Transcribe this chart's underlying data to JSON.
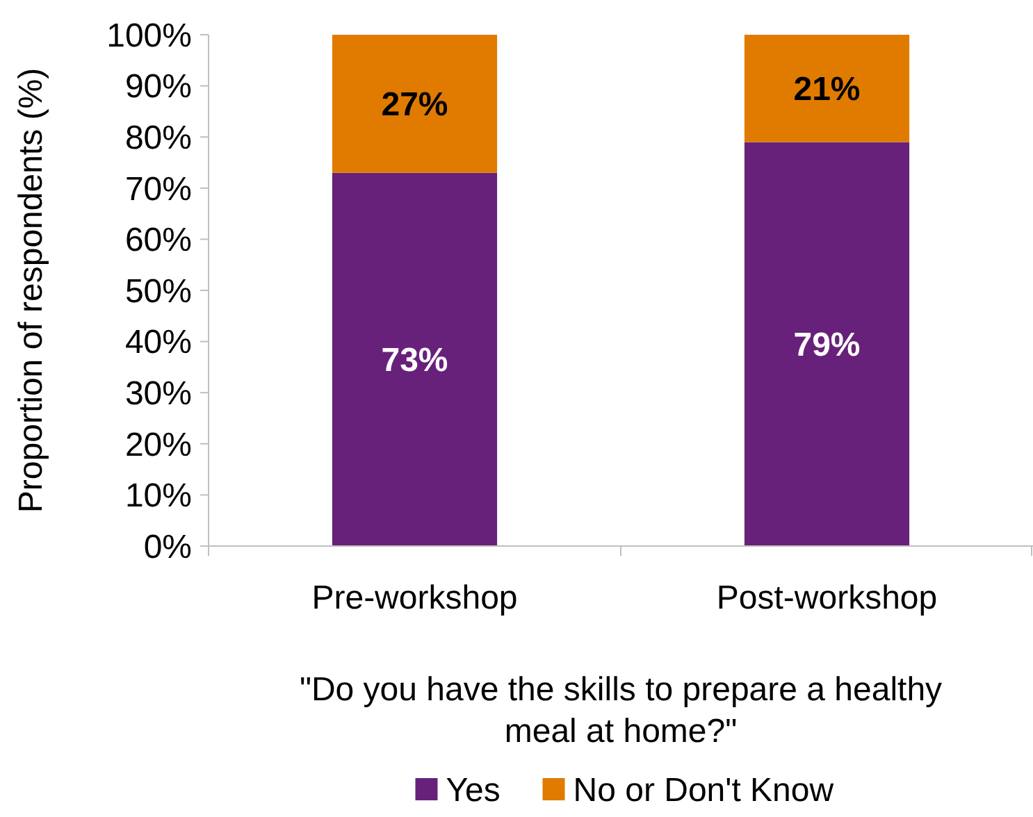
{
  "chart_data": {
    "type": "bar",
    "stacked": true,
    "categories": [
      "Pre-workshop",
      "Post-workshop"
    ],
    "series": [
      {
        "name": "Yes",
        "color": "#68217a",
        "values": [
          73,
          79
        ],
        "value_labels": [
          "73%",
          "79%"
        ]
      },
      {
        "name": "No or Don't Know",
        "color": "#e07b00",
        "values": [
          27,
          21
        ],
        "value_labels": [
          "27%",
          "21%"
        ]
      }
    ],
    "ylabel": "Proportion of respondents (%)",
    "xlabel": "\"Do you have the skills to prepare a healthy meal at home?\"",
    "ylim": [
      0,
      100
    ],
    "yticks": [
      {
        "value": 0,
        "label": "0%"
      },
      {
        "value": 10,
        "label": "10%"
      },
      {
        "value": 20,
        "label": "20%"
      },
      {
        "value": 30,
        "label": "30%"
      },
      {
        "value": 40,
        "label": "40%"
      },
      {
        "value": 50,
        "label": "50%"
      },
      {
        "value": 60,
        "label": "60%"
      },
      {
        "value": 70,
        "label": "70%"
      },
      {
        "value": 80,
        "label": "80%"
      },
      {
        "value": 90,
        "label": "90%"
      },
      {
        "value": 100,
        "label": "100%"
      }
    ],
    "grid": false,
    "legend": "bottom"
  }
}
